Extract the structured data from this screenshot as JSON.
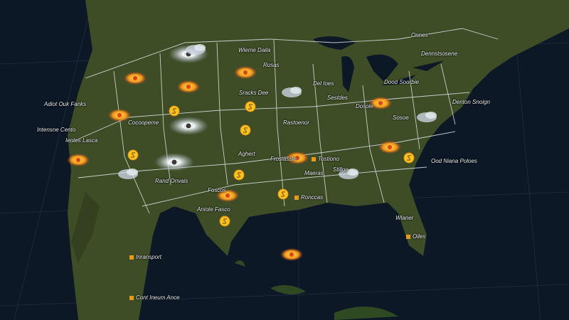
{
  "colors": {
    "ocean": "#0c1826",
    "land": "#3f4d27",
    "land_dark": "#2e3b1d",
    "border": "#dfe6e6",
    "storm_orange": "#f0a020",
    "storm_red": "#e0401a",
    "storm_yellow": "#f6c521",
    "cloud": "#c9d3e0",
    "marker": "#e89a1c"
  },
  "labels": [
    {
      "text": "Adiot Ouk Fanks",
      "marker": false
    },
    {
      "text": "Intensne Cento",
      "marker": false
    },
    {
      "text": "Ientes Lasca",
      "marker": false
    },
    {
      "text": "Cocoopeme",
      "marker": false
    },
    {
      "text": "Rand Onvais",
      "marker": false
    },
    {
      "text": "Aghert",
      "marker": false
    },
    {
      "text": "Foscos",
      "marker": false
    },
    {
      "text": "Aniote Fasco",
      "marker": false
    },
    {
      "text": "Inransport",
      "marker": true
    },
    {
      "text": "Cont Ineum Ance",
      "marker": true
    },
    {
      "text": "Wieme Daila",
      "marker": false
    },
    {
      "text": "Rusas",
      "marker": false
    },
    {
      "text": "Sracks Dee",
      "marker": false
    },
    {
      "text": "Rastoenor",
      "marker": false
    },
    {
      "text": "Del Ioes",
      "marker": false
    },
    {
      "text": "Sestdes",
      "marker": false
    },
    {
      "text": "Dosole",
      "marker": false
    },
    {
      "text": "Dood Soorbie",
      "marker": false
    },
    {
      "text": "Onnes",
      "marker": false
    },
    {
      "text": "Dennstsosene",
      "marker": false
    },
    {
      "text": "Denton Snoign",
      "marker": false
    },
    {
      "text": "Sosoe",
      "marker": false
    },
    {
      "text": "Frosiasste",
      "marker": false
    },
    {
      "text": "Tostiono",
      "marker": true
    },
    {
      "text": "Maeras",
      "marker": false
    },
    {
      "text": "Stilloo",
      "marker": false
    },
    {
      "text": "Ronccas",
      "marker": true
    },
    {
      "text": "Ood Niana Poloes",
      "marker": false
    },
    {
      "text": "Wlaner",
      "marker": false
    },
    {
      "text": "Oiles",
      "marker": true
    }
  ],
  "storms": [
    {
      "type": "hurricane"
    },
    {
      "type": "hurricane"
    },
    {
      "type": "hurricane"
    },
    {
      "type": "fire"
    },
    {
      "type": "fire"
    },
    {
      "type": "fire"
    },
    {
      "type": "fire"
    },
    {
      "type": "fire"
    },
    {
      "type": "fire"
    },
    {
      "type": "fire"
    },
    {
      "type": "fire"
    },
    {
      "type": "fire"
    },
    {
      "type": "fire"
    },
    {
      "type": "cyclone-symbol"
    },
    {
      "type": "cyclone-symbol"
    },
    {
      "type": "cyclone-symbol"
    },
    {
      "type": "cyclone-symbol"
    },
    {
      "type": "cyclone-symbol"
    },
    {
      "type": "cyclone-symbol"
    },
    {
      "type": "cyclone-symbol"
    },
    {
      "type": "cyclone-symbol"
    },
    {
      "type": "cloud"
    },
    {
      "type": "cloud"
    },
    {
      "type": "cloud"
    },
    {
      "type": "cloud"
    },
    {
      "type": "cloud"
    }
  ]
}
